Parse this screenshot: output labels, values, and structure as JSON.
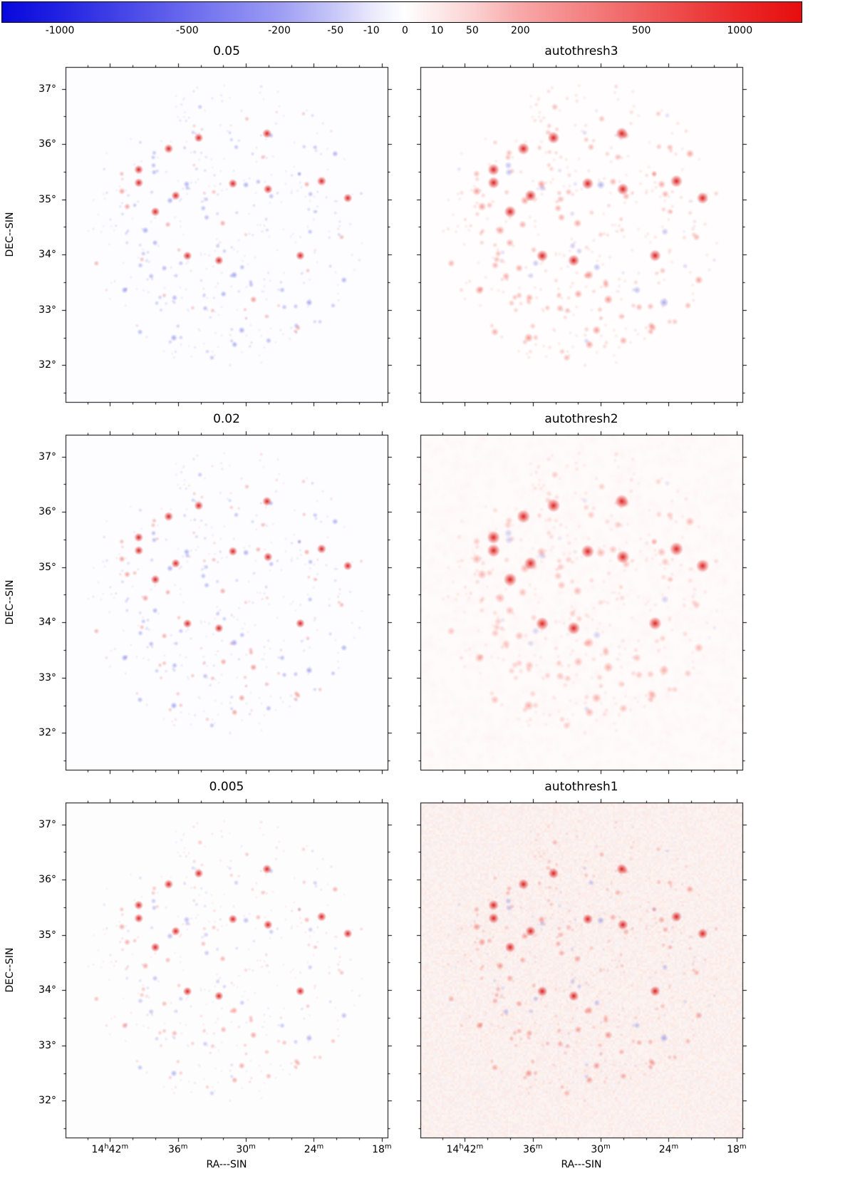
{
  "chart_data": {
    "type": "scatter",
    "title": "",
    "description": "Six-panel comparison figure of wide-field radio sky maps (same source field imaged with different CLEAN thresholds) on a shared diverging blue-white-red colorbar.",
    "colorbar": {
      "orientation": "horizontal",
      "cmap": "bwr",
      "scale": "symlog",
      "ticks": [
        {
          "label": "-1000",
          "pos": 0.073
        },
        {
          "label": "-500",
          "pos": 0.232
        },
        {
          "label": "-200",
          "pos": 0.347
        },
        {
          "label": "-50",
          "pos": 0.417
        },
        {
          "label": "-10",
          "pos": 0.462
        },
        {
          "label": "0",
          "pos": 0.504
        },
        {
          "label": "10",
          "pos": 0.544
        },
        {
          "label": "50",
          "pos": 0.588
        },
        {
          "label": "200",
          "pos": 0.648
        },
        {
          "label": "500",
          "pos": 0.799
        },
        {
          "label": "1000",
          "pos": 0.922
        }
      ],
      "gradient": [
        {
          "pos": 0.0,
          "color": "#0808dc"
        },
        {
          "pos": 0.073,
          "color": "#2222e2"
        },
        {
          "pos": 0.232,
          "color": "#6a6aee"
        },
        {
          "pos": 0.347,
          "color": "#9d9df4"
        },
        {
          "pos": 0.417,
          "color": "#c8c8f8"
        },
        {
          "pos": 0.462,
          "color": "#e9e9fc"
        },
        {
          "pos": 0.504,
          "color": "#ffffff"
        },
        {
          "pos": 0.544,
          "color": "#fdeaea"
        },
        {
          "pos": 0.588,
          "color": "#fbd2d2"
        },
        {
          "pos": 0.648,
          "color": "#f8a8a8"
        },
        {
          "pos": 0.799,
          "color": "#f06060"
        },
        {
          "pos": 0.922,
          "color": "#ea2828"
        },
        {
          "pos": 1.0,
          "color": "#e60e0e"
        }
      ]
    },
    "axes": {
      "xlabel": "RA---SIN",
      "ylabel": "DEC--SIN",
      "x_ticks": [
        {
          "label": "14h42m",
          "pos": 0.138
        },
        {
          "label": "36m",
          "pos": 0.349
        },
        {
          "label": "30m",
          "pos": 0.56
        },
        {
          "label": "24m",
          "pos": 0.771
        },
        {
          "label": "18m",
          "pos": 0.982
        }
      ],
      "y_ticks": [
        {
          "label": "37°",
          "pos": 0.065
        },
        {
          "label": "36°",
          "pos": 0.23
        },
        {
          "label": "35°",
          "pos": 0.395
        },
        {
          "label": "34°",
          "pos": 0.56
        },
        {
          "label": "33°",
          "pos": 0.725
        },
        {
          "label": "32°",
          "pos": 0.89
        }
      ],
      "x_minor_per_gap": 2,
      "y_minor_per_gap": 1
    },
    "panels": [
      {
        "title": "0.05",
        "row": 0,
        "col": 0,
        "background": "#fdfdff",
        "noise": "none",
        "blue_fraction": 0.82,
        "alpha_scale": 1.0,
        "radius_scale": 1.0,
        "faint_blue": "95,95,225",
        "faint_red": "235,70,60",
        "bright_red": "218,15,15"
      },
      {
        "title": "autothresh3",
        "row": 0,
        "col": 1,
        "background": "#fffdfd",
        "noise": "none",
        "blue_fraction": 0.1,
        "alpha_scale": 1.05,
        "radius_scale": 1.3,
        "faint_blue": "110,110,225",
        "faint_red": "238,75,65",
        "bright_red": "218,15,15"
      },
      {
        "title": "0.02",
        "row": 1,
        "col": 0,
        "background": "#fdfdff",
        "noise": "none",
        "blue_fraction": 0.55,
        "alpha_scale": 1.0,
        "radius_scale": 1.0,
        "faint_blue": "95,95,225",
        "faint_red": "235,70,60",
        "bright_red": "218,15,15"
      },
      {
        "title": "autothresh2",
        "row": 1,
        "col": 1,
        "background": "#fffbfa",
        "noise": "haze",
        "blue_fraction": 0.06,
        "alpha_scale": 0.85,
        "radius_scale": 1.45,
        "faint_blue": "120,120,225",
        "faint_red": "240,85,75",
        "bright_red": "220,20,18"
      },
      {
        "title": "0.005",
        "row": 2,
        "col": 0,
        "background": "#fefdfe",
        "noise": "none",
        "blue_fraction": 0.35,
        "alpha_scale": 0.9,
        "radius_scale": 1.0,
        "faint_blue": "105,105,225",
        "faint_red": "236,72,62",
        "bright_red": "218,15,15"
      },
      {
        "title": "autothresh1",
        "row": 2,
        "col": 1,
        "background": "#fdf5f2",
        "noise": "fine",
        "blue_fraction": 0.12,
        "alpha_scale": 1.0,
        "radius_scale": 1.15,
        "faint_blue": "110,110,222",
        "faint_red": "236,70,60",
        "bright_red": "218,15,15"
      }
    ],
    "source_field": {
      "seed": 1337,
      "n_sources": 460,
      "bright_flux": 0.85,
      "radius_fraction": 0.43,
      "center_x": 0.5,
      "center_y": 0.47
    }
  }
}
